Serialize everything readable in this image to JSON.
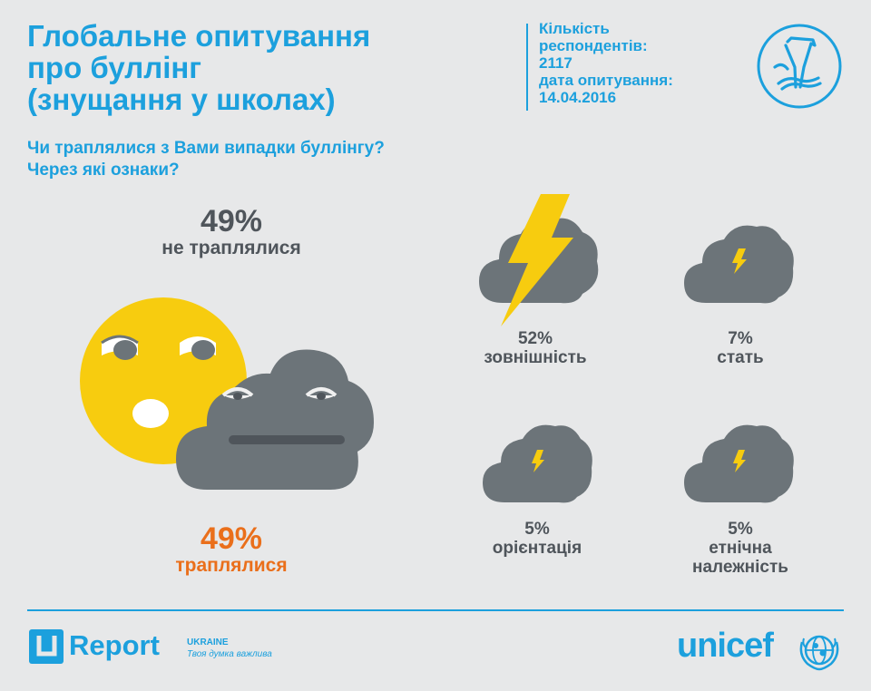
{
  "header": {
    "title_lines": [
      "Глобальне опитування",
      "про буллінг",
      "(знущання у школах)"
    ],
    "meta_lines": [
      "Кількість",
      "респондентів:",
      "2117",
      "дата опитування:",
      "14.04.2016"
    ]
  },
  "question_lines": [
    "Чи траплялися з Вами випадки буллінгу?",
    "Через які ознаки?"
  ],
  "summary": {
    "not_happened": {
      "percent": "49%",
      "label": "не траплялися",
      "value": 49
    },
    "happened": {
      "percent": "49%",
      "label": "траплялися",
      "value": 49
    }
  },
  "categories": [
    {
      "percent": "52%",
      "label_lines": [
        "зовнішність"
      ],
      "value": 52
    },
    {
      "percent": "7%",
      "label_lines": [
        "стать"
      ],
      "value": 7
    },
    {
      "percent": "5%",
      "label_lines": [
        "орієнтація"
      ],
      "value": 5
    },
    {
      "percent": "5%",
      "label_lines": [
        "етнічна",
        "належність"
      ],
      "value": 5
    }
  ],
  "footer": {
    "ureport_word": "Report",
    "ureport_country": "UKRAINE",
    "ureport_tagline": "Твоя думка важлива",
    "unicef_word": "unicef"
  },
  "colors": {
    "accent_blue": "#1ca0dd",
    "cloud_grey": "#6c7479",
    "sun_yellow": "#f7cc0f",
    "orange": "#ea6f1b",
    "background": "#e7e8e9"
  },
  "icons": [
    "slingshot-icon",
    "smiley-face-icon",
    "sad-cloud-icon",
    "lightning-cloud-icon",
    "ureport-logo-icon",
    "unicef-globe-icon"
  ]
}
